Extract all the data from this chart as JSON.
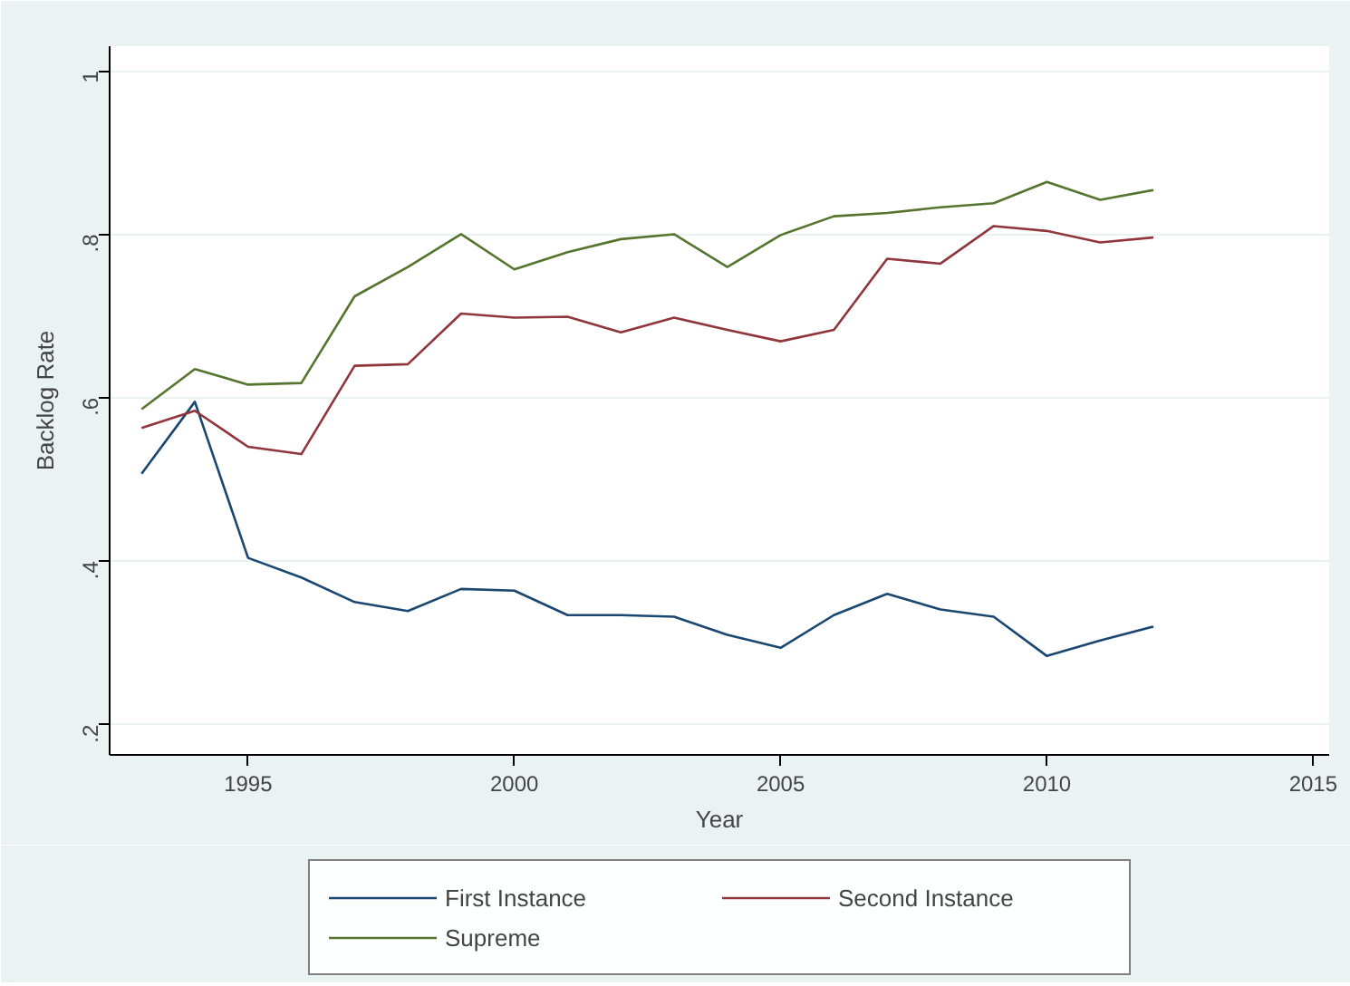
{
  "chart_data": {
    "type": "line",
    "xlabel": "Year",
    "ylabel": "Backlog Rate",
    "x": [
      1993,
      1994,
      1995,
      1996,
      1997,
      1998,
      1999,
      2000,
      2001,
      2002,
      2003,
      2004,
      2005,
      2006,
      2007,
      2008,
      2009,
      2010,
      2011,
      2012
    ],
    "series": [
      {
        "name": "First Instance",
        "color": "#1a476f",
        "values": [
          0.507,
          0.595,
          0.404,
          0.38,
          0.35,
          0.339,
          0.366,
          0.364,
          0.334,
          0.334,
          0.332,
          0.31,
          0.294,
          0.334,
          0.36,
          0.341,
          0.332,
          0.284,
          0.303,
          0.32
        ]
      },
      {
        "name": "Second Instance",
        "color": "#90353b",
        "values": [
          0.563,
          0.584,
          0.54,
          0.531,
          0.639,
          0.641,
          0.703,
          0.698,
          0.699,
          0.68,
          0.698,
          0.683,
          0.669,
          0.683,
          0.77,
          0.764,
          0.81,
          0.804,
          0.79,
          0.796
        ]
      },
      {
        "name": "Supreme",
        "color": "#55752f",
        "values": [
          0.586,
          0.635,
          0.616,
          0.618,
          0.724,
          0.76,
          0.8,
          0.757,
          0.778,
          0.794,
          0.8,
          0.76,
          0.799,
          0.822,
          0.826,
          0.833,
          0.838,
          0.864,
          0.842,
          0.854
        ]
      }
    ],
    "xlim": [
      1992.4,
      2015.3
    ],
    "ylim": [
      0.163,
      1.03
    ],
    "xticks": [
      1995,
      2000,
      2005,
      2010,
      2015
    ],
    "yticks": [
      {
        "value": 0.2,
        "label": ".2"
      },
      {
        "value": 0.4,
        "label": ".4"
      },
      {
        "value": 0.6,
        "label": ".6"
      },
      {
        "value": 0.8,
        "label": ".8"
      },
      1
    ],
    "grid": "y",
    "legend": "bottom",
    "marker": "none",
    "line_style": "solid"
  }
}
